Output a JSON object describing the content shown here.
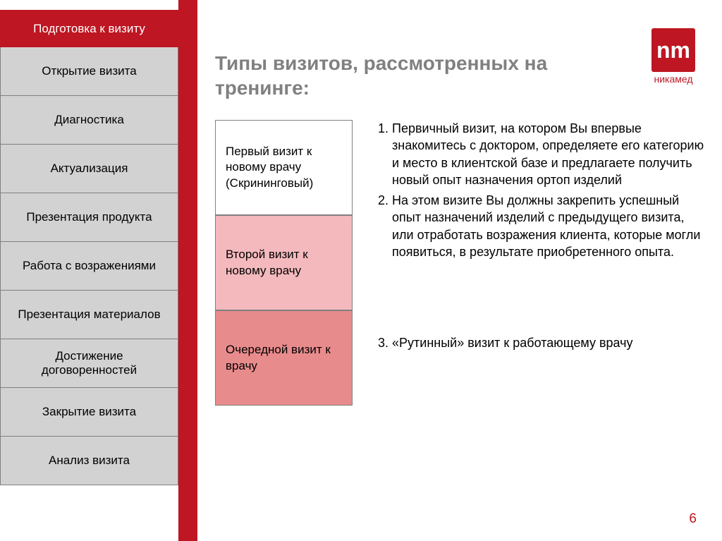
{
  "colors": {
    "accent": "#be1622",
    "sidebar_bg": "#d2d2d2",
    "card2_bg": "#f4b9bd",
    "card3_bg": "#e88b8c",
    "title_grey": "#808080"
  },
  "sidebar": {
    "items": [
      {
        "label": "Подготовка к визиту",
        "active": true
      },
      {
        "label": "Открытие визита"
      },
      {
        "label": "Диагностика"
      },
      {
        "label": "Актуализация"
      },
      {
        "label": "Презентация продукта"
      },
      {
        "label": "Работа с возражениями"
      },
      {
        "label": "Презентация материалов"
      },
      {
        "label": "Достижение договоренностей"
      },
      {
        "label": "Закрытие визита"
      },
      {
        "label": "Анализ визита"
      }
    ]
  },
  "logo": {
    "glyph": "nm",
    "text": "никамед"
  },
  "title": "Типы визитов, рассмотренных на тренинге:",
  "cards": [
    {
      "text": "Первый визит к новому врачу (Скрининговый)",
      "bg": "#ffffff"
    },
    {
      "text": "Второй визит к новому врачу",
      "bg": "#f4b9bd"
    },
    {
      "text": "Очередной визит к врачу",
      "bg": "#e88b8c"
    }
  ],
  "list": {
    "items12": [
      "Первичный визит, на котором Вы впервые знакомитесь с доктором, определяете его категорию и место в клиентской базе и предлагаете получить новый опыт назначения ортоп изделий",
      "На этом визите Вы должны закрепить успешный опыт назначений изделий с предыдущего визита, или отработать возражения клиента, которые могли появиться, в результате приобретенного опыта."
    ],
    "item3": "«Рутинный» визит к работающему врачу"
  },
  "page_number": "6"
}
